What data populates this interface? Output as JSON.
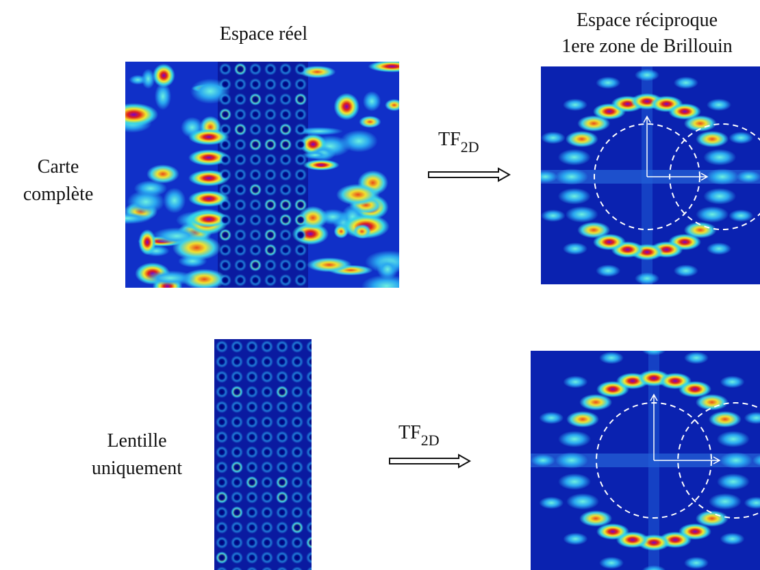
{
  "headers": {
    "real_space": "Espace réel",
    "reciprocal_space": [
      "Espace réciproque",
      "1ere zone de Brillouin"
    ]
  },
  "rows": [
    {
      "label": [
        "Carte",
        "complète"
      ],
      "transform": {
        "base": "TF",
        "subscript": "2D"
      }
    },
    {
      "label": [
        "Lentille",
        "uniquement"
      ],
      "transform": {
        "base": "TF",
        "subscript": "2D"
      }
    }
  ]
}
